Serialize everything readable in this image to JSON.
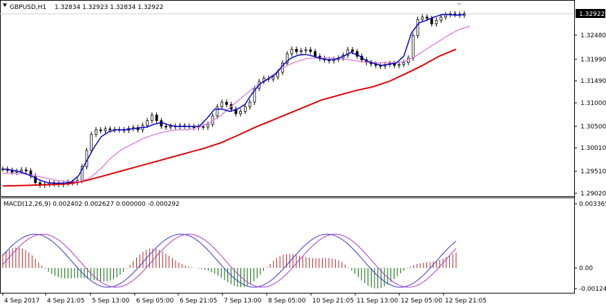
{
  "header": {
    "symbol": "GBPUSD,H1",
    "ohlc": "1.32834 1.32923 1.32834 1.32922"
  },
  "macd": {
    "label": "MACD(12,26,9) 0.002402 0.002627 0.000000 -0.000292",
    "ticks": [
      "0.003365",
      "0.00",
      "-0.001244"
    ]
  },
  "price_axis": {
    "ticks": [
      "1.32480",
      "1.31990",
      "1.31490",
      "1.31000",
      "1.30500",
      "1.30010",
      "1.29510",
      "1.29020"
    ],
    "current": "1.32922"
  },
  "time_axis": {
    "ticks": [
      "4 Sep 2017",
      "4 Sep 21:05",
      "5 Sep 13:00",
      "6 Sep 05:00",
      "6 Sep 21:05",
      "7 Sep 13:00",
      "8 Sep 05:00",
      "10 Sep 21:05",
      "11 Sep 13:00",
      "12 Sep 05:00",
      "12 Sep 21:05"
    ]
  },
  "colors": {
    "candle": "#000000",
    "ma_fast": "#0000cc",
    "ma_mid": "#dd88dd",
    "ma_slow": "#e00000",
    "macd_main": "#3333cc",
    "macd_signal": "#aa33cc",
    "hist_pos": "#b22222",
    "hist_neg": "#006400"
  },
  "chart_data": {
    "type": "line",
    "price_series": {
      "candles_close_approx": [
        1.2955,
        1.2952,
        1.2948,
        1.295,
        1.2953,
        1.2951,
        1.294,
        1.2925,
        1.292,
        1.2922,
        1.2925,
        1.2923,
        1.2921,
        1.2924,
        1.2926,
        1.2925,
        1.293,
        1.296,
        1.2995,
        1.303,
        1.304,
        1.3038,
        1.3042,
        1.304,
        1.3041,
        1.304,
        1.3039,
        1.3043,
        1.3045,
        1.304,
        1.305,
        1.306,
        1.3072,
        1.306,
        1.3048,
        1.3046,
        1.3048,
        1.3047,
        1.3049,
        1.3048,
        1.3047,
        1.3045,
        1.3047,
        1.3046,
        1.3052,
        1.307,
        1.309,
        1.31,
        1.3095,
        1.3085,
        1.3075,
        1.308,
        1.309,
        1.31,
        1.313,
        1.3145,
        1.3152,
        1.315,
        1.3155,
        1.3165,
        1.3185,
        1.3205,
        1.3215,
        1.321,
        1.3212,
        1.3214,
        1.321,
        1.32,
        1.3195,
        1.3192,
        1.319,
        1.3193,
        1.3196,
        1.3202,
        1.3214,
        1.321,
        1.32,
        1.3192,
        1.3186,
        1.3183,
        1.318,
        1.3178,
        1.3182,
        1.3184,
        1.318,
        1.3182,
        1.3186,
        1.3196,
        1.3245,
        1.328,
        1.3285,
        1.3282,
        1.327,
        1.3278,
        1.3285,
        1.329,
        1.3292,
        1.3291,
        1.3289,
        1.3292
      ]
    },
    "ma_fast": [
      1.2955,
      1.2953,
      1.295,
      1.2945,
      1.2938,
      1.293,
      1.2925,
      1.2924,
      1.2924,
      1.2926,
      1.294,
      1.297,
      1.3,
      1.3025,
      1.3036,
      1.304,
      1.304,
      1.3042,
      1.3044,
      1.3046,
      1.3052,
      1.3056,
      1.305,
      1.3047,
      1.3047,
      1.3047,
      1.3048,
      1.3065,
      1.3085,
      1.3085,
      1.308,
      1.3085,
      1.3095,
      1.312,
      1.314,
      1.315,
      1.316,
      1.318,
      1.3195,
      1.3202,
      1.3204,
      1.32,
      1.3195,
      1.3192,
      1.3193,
      1.32,
      1.3208,
      1.3202,
      1.319,
      1.3185,
      1.318,
      1.3182,
      1.3185,
      1.32,
      1.325,
      1.3272,
      1.3278,
      1.3285,
      1.329,
      1.329,
      1.3289,
      1.329
    ],
    "ma_mid": [
      1.2945,
      1.2946,
      1.2944,
      1.294,
      1.2935,
      1.293,
      1.2928,
      1.2928,
      1.2935,
      1.2955,
      1.298,
      1.2998,
      1.301,
      1.3022,
      1.303,
      1.3036,
      1.304,
      1.304,
      1.3045,
      1.3055,
      1.307,
      1.309,
      1.311,
      1.313,
      1.3145,
      1.3162,
      1.3178,
      1.3188,
      1.3195,
      1.3196,
      1.3196,
      1.3195,
      1.3192,
      1.3188,
      1.3186,
      1.3186,
      1.3186,
      1.3188,
      1.32,
      1.3215,
      1.323,
      1.3245,
      1.3258,
      1.3265
    ],
    "ma_slow": [
      1.2918,
      1.2919,
      1.292,
      1.2921,
      1.2923,
      1.293,
      1.294,
      1.295,
      1.296,
      1.297,
      1.298,
      1.299,
      1.3,
      1.3012,
      1.3028,
      1.3045,
      1.306,
      1.3075,
      1.309,
      1.3105,
      1.3115,
      1.3125,
      1.3133,
      1.3145,
      1.3162,
      1.318,
      1.32,
      1.3215
    ],
    "ylim": [
      1.2902,
      1.3295
    ]
  }
}
